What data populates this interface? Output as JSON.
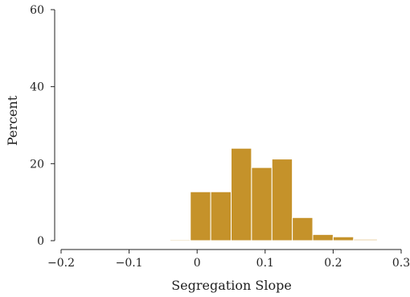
{
  "chart_data": {
    "type": "bar",
    "title": "",
    "xlabel": "Segregation Slope",
    "ylabel": "Percent",
    "xlim": [
      -0.2,
      0.3
    ],
    "ylim": [
      0,
      60
    ],
    "x_ticks": [
      -0.2,
      -0.1,
      0,
      0.1,
      0.2,
      0.3
    ],
    "x_tick_labels": [
      "−0.2",
      "−0.1",
      "0",
      "0.1",
      "0.2",
      "0.3"
    ],
    "y_ticks": [
      0,
      20,
      40,
      60
    ],
    "y_tick_labels": [
      "0",
      "20",
      "40",
      "60"
    ],
    "grid": false,
    "bar_color": "#c5922a",
    "light_bar_color": "#e8cfa0",
    "bins": [
      {
        "x0": -0.04,
        "x1": -0.01,
        "value": 0.3
      },
      {
        "x0": -0.01,
        "x1": 0.02,
        "value": 12.7
      },
      {
        "x0": 0.02,
        "x1": 0.05,
        "value": 12.7
      },
      {
        "x0": 0.05,
        "x1": 0.08,
        "value": 24.0
      },
      {
        "x0": 0.08,
        "x1": 0.11,
        "value": 19.0
      },
      {
        "x0": 0.11,
        "x1": 0.14,
        "value": 21.2
      },
      {
        "x0": 0.14,
        "x1": 0.17,
        "value": 6.0
      },
      {
        "x0": 0.17,
        "x1": 0.2,
        "value": 1.6
      },
      {
        "x0": 0.2,
        "x1": 0.23,
        "value": 1.0
      },
      {
        "x0": 0.23,
        "x1": 0.265,
        "value": 0.4
      }
    ]
  }
}
